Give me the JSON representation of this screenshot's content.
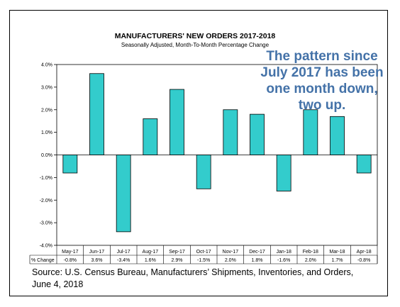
{
  "chart_data": {
    "type": "bar",
    "title": "MANUFACTURERS' NEW ORDERS 2017-2018",
    "subtitle": "Seasonally Adjusted,  Month-To-Month  Percentage Change",
    "categories": [
      "May-17",
      "Jun-17",
      "Jul-17",
      "Aug-17",
      "Sep-17",
      "Oct-17",
      "Nov-17",
      "Dec-17",
      "Jan-18",
      "Feb-18",
      "Mar-18",
      "Apr-18"
    ],
    "values": [
      -0.8,
      3.6,
      -3.4,
      1.6,
      2.9,
      -1.5,
      2.0,
      1.8,
      -1.6,
      2.0,
      1.7,
      -0.8
    ],
    "value_labels": [
      "-0.8%",
      "3.6%",
      "-3.4%",
      "1.6%",
      "2.9%",
      "-1.5%",
      "2.0%",
      "1.8%",
      "-1.6%",
      "2.0%",
      "1.7%",
      "-0.8%"
    ],
    "row_header": "% Change",
    "ylim": [
      -4.0,
      4.0
    ],
    "y_ticks": [
      "4.0%",
      "3.0%",
      "2.0%",
      "1.0%",
      "0.0%",
      "-1.0%",
      "-2.0%",
      "-3.0%",
      "-4.0%"
    ],
    "y_tick_values": [
      4,
      3,
      2,
      1,
      0,
      -1,
      -2,
      -3,
      -4
    ],
    "bar_color": "#33cccc",
    "grid": false,
    "annotation": [
      "The pattern since",
      "July 2017 has been",
      "one month down,",
      "two up."
    ],
    "annotation_color": "#4472a8",
    "source": [
      "Source: U.S. Census Bureau, Manufacturers’ Shipments, Inventories, and Orders,",
      "June 4, 2018"
    ]
  }
}
